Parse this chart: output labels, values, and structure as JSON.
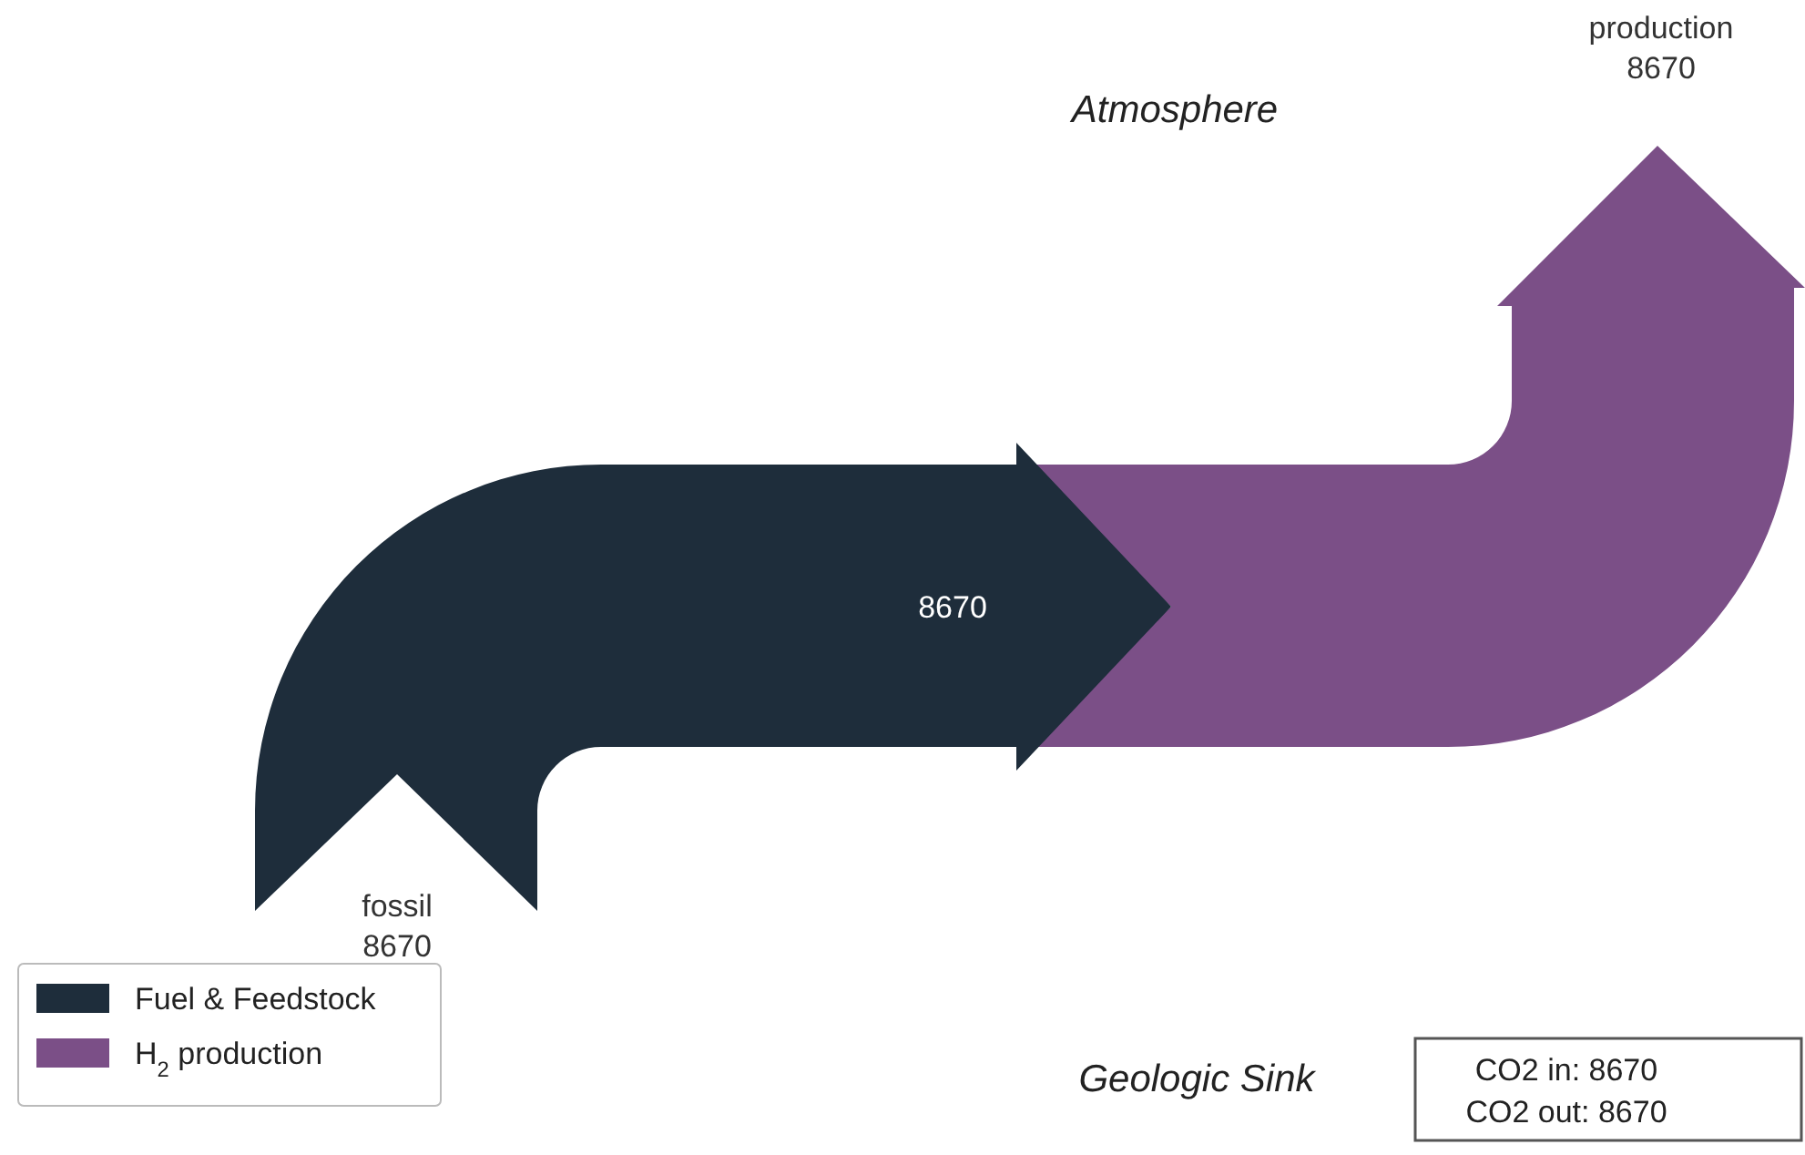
{
  "chart_data": {
    "type": "other",
    "legend": "bottom left",
    "categories": [
      "fossil",
      "production"
    ],
    "series": [
      {
        "name": "Fuel & Feedstock",
        "color": "#1e2d3b",
        "values": [
          8670,
          null
        ]
      },
      {
        "name": "H$_{2}$ production",
        "color": "#7b4f87",
        "values": [
          null,
          8670
        ]
      }
    ],
    "data_labels": true,
    "annotations": [
      "Atmosphere",
      "Geologic Sink",
      "CO2 in: 8670",
      "CO2 out: 8670",
      "8670"
    ]
  }
}
